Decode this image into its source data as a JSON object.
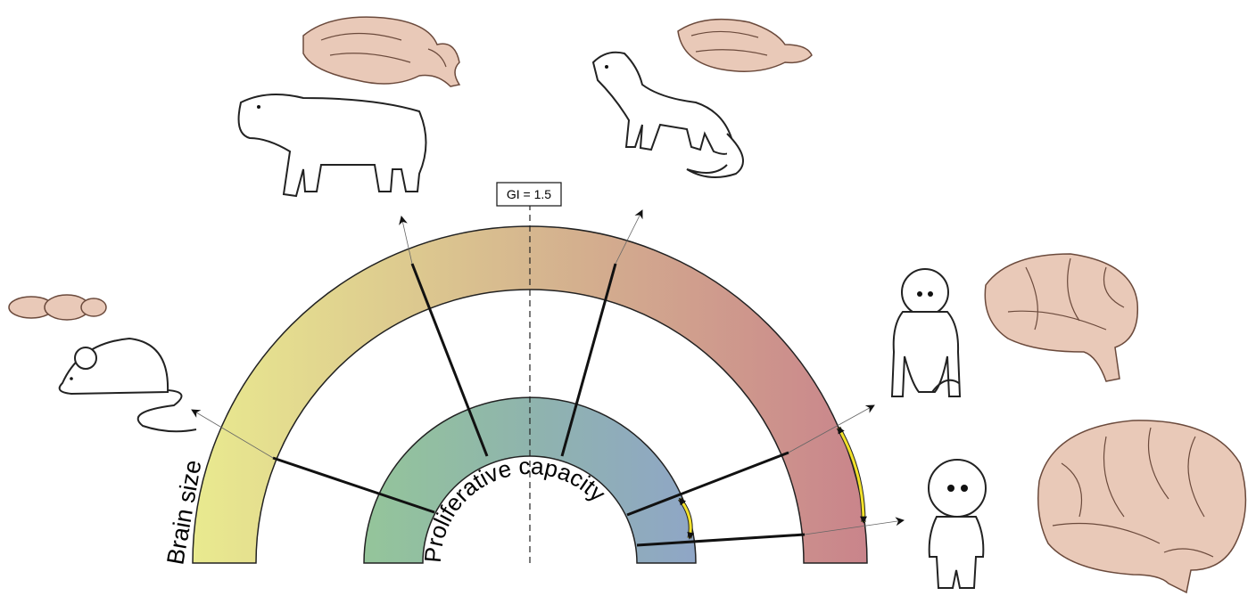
{
  "labels": {
    "gi": "GI = 1.5",
    "brain_size": "Brain size",
    "proliferative_capacity": "Proliferative capacity"
  }
}
